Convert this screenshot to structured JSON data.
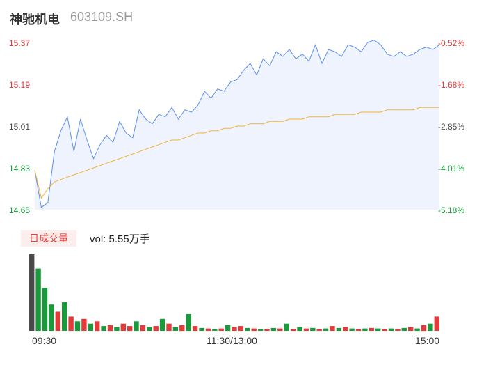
{
  "header": {
    "name": "神驰机电",
    "code": "603109.SH"
  },
  "colors": {
    "up": "#e23b3b",
    "down": "#1a9a3a",
    "price_line": "#5b8ff0",
    "avg_line": "#f2b33a",
    "area_fill": "#eef3fd",
    "neutral": "#4a4a4a"
  },
  "volume_panel": {
    "badge": "日成交量",
    "vol_label": "vol: 5.55万手"
  },
  "chart_data": [
    {
      "type": "line",
      "x_labels": [
        "09:30",
        "11:30/13:00",
        "15:00"
      ],
      "y_ticks_left": [
        "15.37",
        "15.19",
        "15.01",
        "14.83",
        "14.65"
      ],
      "y_ticks_right": [
        "-0.52%",
        "-1.68%",
        "-2.85%",
        "-4.01%",
        "-5.18%"
      ],
      "ylim": [
        14.65,
        15.37
      ],
      "series": [
        {
          "values": [
            14.82,
            14.66,
            14.68,
            14.9,
            14.99,
            15.05,
            14.9,
            15.04,
            14.95,
            14.87,
            14.93,
            14.97,
            14.94,
            15.03,
            14.98,
            14.96,
            15.08,
            15.04,
            15.02,
            15.06,
            15.05,
            15.09,
            15.04,
            15.08,
            15.07,
            15.1,
            15.16,
            15.13,
            15.17,
            15.16,
            15.2,
            15.21,
            15.25,
            15.28,
            15.23,
            15.3,
            15.27,
            15.33,
            15.31,
            15.34,
            15.3,
            15.32,
            15.29,
            15.36,
            15.28,
            15.34,
            15.33,
            15.31,
            15.36,
            15.35,
            15.33,
            15.37,
            15.38,
            15.36,
            15.32,
            15.31,
            15.33,
            15.31,
            15.32,
            15.34,
            15.35,
            15.34,
            15.36
          ]
        },
        {
          "values": [
            14.82,
            14.7,
            14.74,
            14.77,
            14.78,
            14.79,
            14.8,
            14.81,
            14.82,
            14.83,
            14.84,
            14.85,
            14.86,
            14.87,
            14.88,
            14.89,
            14.9,
            14.91,
            14.92,
            14.93,
            14.94,
            14.95,
            14.95,
            14.96,
            14.97,
            14.98,
            14.98,
            14.99,
            14.99,
            15.0,
            15.0,
            15.01,
            15.01,
            15.02,
            15.02,
            15.02,
            15.03,
            15.03,
            15.03,
            15.04,
            15.04,
            15.04,
            15.05,
            15.05,
            15.05,
            15.05,
            15.06,
            15.06,
            15.06,
            15.06,
            15.07,
            15.07,
            15.07,
            15.07,
            15.08,
            15.08,
            15.08,
            15.08,
            15.08,
            15.09,
            15.09,
            15.09,
            15.09
          ]
        }
      ]
    },
    {
      "type": "bar",
      "values": [
        1.6,
        1.3,
        0.9,
        0.55,
        0.4,
        0.6,
        0.3,
        0.2,
        0.25,
        0.15,
        0.2,
        0.1,
        0.12,
        0.08,
        0.15,
        0.1,
        0.2,
        0.12,
        0.08,
        0.1,
        0.25,
        0.15,
        0.08,
        0.12,
        0.35,
        0.1,
        0.06,
        0.05,
        0.04,
        0.05,
        0.12,
        0.08,
        0.1,
        0.06,
        0.05,
        0.04,
        0.04,
        0.06,
        0.05,
        0.15,
        0.04,
        0.08,
        0.05,
        0.06,
        0.04,
        0.05,
        0.1,
        0.06,
        0.08,
        0.05,
        0.04,
        0.05,
        0.06,
        0.05,
        0.04,
        0.05,
        0.04,
        0.06,
        0.08,
        0.05,
        0.12,
        0.15,
        0.3
      ],
      "directions": [
        "n",
        "d",
        "d",
        "d",
        "u",
        "d",
        "u",
        "d",
        "u",
        "d",
        "u",
        "d",
        "u",
        "d",
        "u",
        "u",
        "d",
        "u",
        "d",
        "u",
        "d",
        "u",
        "d",
        "u",
        "d",
        "u",
        "d",
        "u",
        "d",
        "u",
        "d",
        "u",
        "u",
        "d",
        "u",
        "d",
        "u",
        "d",
        "u",
        "d",
        "u",
        "d",
        "u",
        "d",
        "u",
        "d",
        "u",
        "d",
        "u",
        "d",
        "u",
        "d",
        "u",
        "d",
        "u",
        "d",
        "u",
        "d",
        "u",
        "d",
        "u",
        "d",
        "u"
      ]
    }
  ]
}
